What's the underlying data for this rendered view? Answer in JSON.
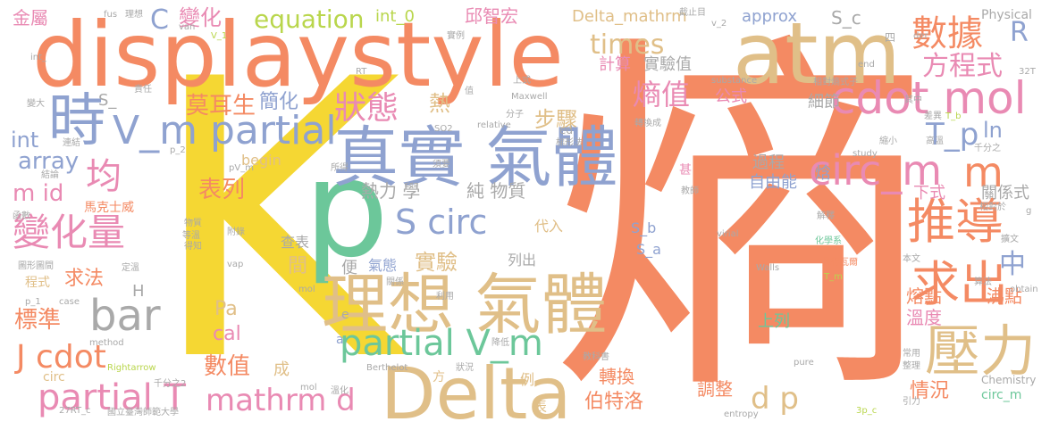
{
  "colors": {
    "background": "#ffffff",
    "orange": "#f48a63",
    "yellow": "#f5d733",
    "tan": "#e0bf88",
    "pink": "#e98ab3",
    "green": "#6cc79a",
    "lavender": "#8fa2d0",
    "gray": "#a9a9a9",
    "lime": "#b9d64c"
  },
  "words": {
    "shang": "熵",
    "K": "K",
    "displaystyle": "displaystyle",
    "atm": "atm",
    "p": "p",
    "zhenshi_qiti": "真實 氣體",
    "lixiang_qiti": "理想 氣體",
    "Delta": "Delta",
    "cdot_mol": "cdot mol",
    "V_m_partial": "V_m partial",
    "shi": "時",
    "yali": "壓力",
    "circ_m": "circ_m",
    "m_right": "m",
    "tuidao": "推導",
    "qiuchu": "求出",
    "bianhualiang": "變化量",
    "jun": "均",
    "S_circ": "S circ",
    "partial_V_m": "partial V_m",
    "partial_T": "partial T",
    "bar": "bar",
    "mathrm_d": "mathrm d",
    "d_p": "d p",
    "J_cdot": "J cdot",
    "shuju": "數據",
    "fangchengshi": "方程式",
    "shangzhi": "熵值",
    "times": "times",
    "zhuangtai": "狀態",
    "moersheng": "莫耳生",
    "bianhua": "變化",
    "C": "C",
    "equation": "equation",
    "T_p": "T_p",
    "ln": "ln",
    "R": "R",
    "zhong": "中",
    "m_id": "m id",
    "array": "array",
    "int_left": "int",
    "biaolie": "表列",
    "qiufa": "求法",
    "biaozhun": "標準",
    "shuzhi": "數值",
    "mathrm_d_small": "mathrm d",
    "Pa": "Pa",
    "cal": "cal",
    "jiandan": "簡化",
    "buzhou": "步驟",
    "re": "熱",
    "relixue": "熱力 學",
    "chunwuzhi": "純 物質",
    "shiyan": "實驗",
    "shiyanzhi": "實驗值",
    "jisuan": "計算",
    "xijie": "細節",
    "gongshi": "公式",
    "guocheng": "過程",
    "ziyouneng": "自由能",
    "han": "焓",
    "wendu": "溫度",
    "rongdian": "熔點",
    "feidian": "沸點",
    "qingkuang": "情況",
    "zhuanhuan": "轉換",
    "tiaozheng": "調整",
    "bosteluo": "伯特洛",
    "shangliezi": "上列",
    "xiashi": "下式",
    "guanxishi": "關係式",
    "approx": "approx",
    "S_c": "S_c",
    "int_0": "int_0",
    "Delta_mathrm": "Delta_mathrm",
    "qiuzhihong": "邱智宏",
    "jinshu": "金屬",
    "Physical": "Physical",
    "S_b": "S_b",
    "S_a": "S_a",
    "chabiao": "查表",
    "qitai": "氣態",
    "liechu": "列出",
    "dairu": "代入",
    "jian": "間",
    "bian": "便",
    "makeshiwei": "馬克士威",
    "begin": "begin",
    "H": "H",
    "cheng": "成",
    "fang": "方",
    "li": "例",
    "circ": "circ",
    "Chemistry": "Chemistry",
    "circ_m_small": "circ_m",
    "fus": "fus",
    "lixiang": "理想",
    "van": "van",
    "V_1": "V_1",
    "int_": "int_",
    "shenshi": "甚",
    "S_": "S_",
    "RT": "RT",
    "Maxwell": "Maxwell",
    "substance": "substance",
    "relative": "relative",
    "SO2": "SO2",
    "chai": "差",
    "lai": "來",
    "ed": "ed",
    "study": "study",
    "T_b": "T_b",
    "Walls": "Walls",
    "virial": "virial",
    "Berthelot": "Berthelot",
    "Rightarrow": "Rightarrow",
    "method": "method",
    "27RT_c": "27RT_c",
    "case": "case",
    "p_1": "p_1",
    "vap": "vap",
    "mol": "mol",
    "obtain": "obtain",
    "entropy": "entropy",
    "pure": "pure",
    "3p_c": "3p_c",
    "T_m": "T_m",
    "g": "g",
    "der": "der",
    "end": "end",
    "32T": "32T",
    "si": "四",
    "v_2": "v_2",
    "pV_m": "pV_m",
    "p_2": "p_2",
    "guoli_taiwan": "國立臺灣師範大學",
    "qianfenzhier": "千分之2",
    "biao": "表",
    "a": "a",
    "e": "e",
    "yinli": "引力",
    "zhengli": "整理",
    "changyong": "常用",
    "huaxuexi": "化學系",
    "fanderwa": "凡得瓦爾",
    "benwen": "本文",
    "suanfa": "算法",
    "jiaokeshu": "教科書",
    "jiangdi": "降低",
    "zhuangkuang": "狀況",
    "liyong": "利用",
    "fenzi": "分子",
    "jiaoshi": "教師",
    "zhuanhuancheng": "轉換成",
    "tixingfa": "梯形法",
    "shiyou": "實例",
    "xiangduishang": "相對熵式子",
    "jiezhimu": "截止目",
    "xiangdui": "相對於",
    "cuoshi": "縮小",
    "wenhua": "溫化",
    "xuyao": "須要",
    "suoyou": "所得",
    "shiyong": "適用",
    "deni": "得知",
    "fujin": "附錄",
    "wuzhi": "物質",
    "dengwen": "等溫",
    "guanxi": "關係",
    "guanxishi_small": "關係式",
    "jiezhi": "截止",
    "lianjie": "連結",
    "jieshi": "解釋",
    "quxian": "曲線",
    "jieguo": "結論",
    "hanshu": "函數",
    "tuxingtu": "圖形圖間",
    "chengshi": "程式",
    "duiying": "對應",
    "wancheng": "完成",
    "dingding": "定溫",
    "biangeng": "變大",
    "zeren": "責任",
    "zhi": "值",
    "shangshi": "上式",
    "chayi": "差異",
    "qianfenzhi": "千分之",
    "gaosu": "高溫",
    "xiangjia": "值相差不到",
    "zhaopian": "擴文",
    "xiaoshu": "小數",
    "qizhong": "其中",
    "zhongyao": "重要",
    "jingdu": "精度",
    "bian2": "變",
    "xiaobu": "小步",
    "yizhi": "一致",
    "re2": "熱",
    "mol_small": "mol",
    "gezi": "個",
    "wai": "外"
  }
}
